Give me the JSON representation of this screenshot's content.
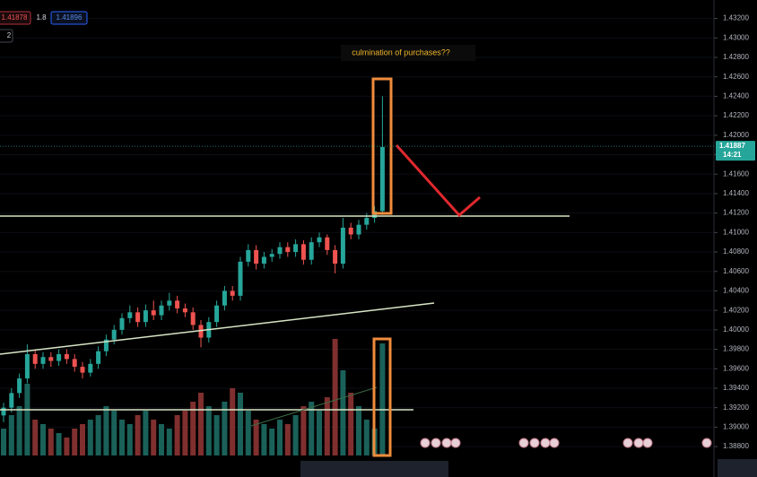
{
  "toolbar": {
    "sell": "1.41878",
    "spread": "1.8",
    "buy": "1.41896",
    "count": "2"
  },
  "chart_data": {
    "type": "candlestick",
    "annotation": "culmination of purchases??",
    "last_price": 1.41887,
    "countdown": "14:21",
    "up_color": "#26a69a",
    "down_color": "#ef5350",
    "ylim": [
      1.3869,
      1.4339
    ],
    "yticks": [
      {
        "value": 1.388,
        "label": "1.38800"
      },
      {
        "value": 1.39,
        "label": "1.39000"
      },
      {
        "value": 1.392,
        "label": "1.39200"
      },
      {
        "value": 1.394,
        "label": "1.39400"
      },
      {
        "value": 1.396,
        "label": "1.39600"
      },
      {
        "value": 1.398,
        "label": "1.39800"
      },
      {
        "value": 1.4,
        "label": "1.40000"
      },
      {
        "value": 1.402,
        "label": "1.40200"
      },
      {
        "value": 1.404,
        "label": "1.40400"
      },
      {
        "value": 1.406,
        "label": "1.40600"
      },
      {
        "value": 1.408,
        "label": "1.40800"
      },
      {
        "value": 1.41,
        "label": "1.41000"
      },
      {
        "value": 1.412,
        "label": "1.41200"
      },
      {
        "value": 1.414,
        "label": "1.41400"
      },
      {
        "value": 1.416,
        "label": "1.41600"
      },
      {
        "value": 1.418,
        "label": "1.41800"
      },
      {
        "value": 1.42,
        "label": "1.42000"
      },
      {
        "value": 1.422,
        "label": "1.42200"
      },
      {
        "value": 1.424,
        "label": "1.42400"
      },
      {
        "value": 1.426,
        "label": "1.42600"
      },
      {
        "value": 1.428,
        "label": "1.42800"
      },
      {
        "value": 1.43,
        "label": "1.43000"
      },
      {
        "value": 1.432,
        "label": "1.43200"
      }
    ],
    "open": [
      1.3912,
      1.392,
      1.3935,
      1.395,
      1.3975,
      1.3965,
      1.3972,
      1.3968,
      1.3975,
      1.397,
      1.3962,
      1.3956,
      1.3965,
      1.3978,
      1.399,
      1.4,
      1.4012,
      1.4018,
      1.4008,
      1.402,
      1.4015,
      1.4025,
      1.403,
      1.4022,
      1.4018,
      1.4005,
      1.3992,
      1.4008,
      1.4025,
      1.404,
      1.4035,
      1.407,
      1.4082,
      1.4068,
      1.4075,
      1.4078,
      1.4085,
      1.408,
      1.4088,
      1.4072,
      1.409,
      1.4095,
      1.4082,
      1.4068,
      1.4105,
      1.4098,
      1.4108,
      1.4115,
      1.4122
    ],
    "high": [
      1.3925,
      1.394,
      1.3955,
      1.3985,
      1.398,
      1.3977,
      1.3977,
      1.398,
      1.398,
      1.3975,
      1.3967,
      1.397,
      1.3983,
      1.3995,
      1.4005,
      1.4017,
      1.4025,
      1.4023,
      1.4026,
      1.403,
      1.403,
      1.4038,
      1.4035,
      1.4027,
      1.4023,
      1.401,
      1.4013,
      1.403,
      1.4045,
      1.4045,
      1.4075,
      1.4088,
      1.4087,
      1.408,
      1.4083,
      1.409,
      1.409,
      1.4093,
      1.4092,
      1.4095,
      1.41,
      1.4098,
      1.4087,
      1.4115,
      1.411,
      1.4113,
      1.412,
      1.4127,
      1.424
    ],
    "low": [
      1.3905,
      1.3915,
      1.393,
      1.3945,
      1.396,
      1.396,
      1.3962,
      1.3963,
      1.3965,
      1.3957,
      1.395,
      1.3952,
      1.396,
      1.3973,
      1.3985,
      1.3995,
      1.4007,
      1.4003,
      1.4003,
      1.401,
      1.401,
      1.402,
      1.4017,
      1.4013,
      1.4,
      1.3982,
      1.3987,
      1.4003,
      1.402,
      1.403,
      1.403,
      1.4065,
      1.4062,
      1.4063,
      1.407,
      1.4073,
      1.4075,
      1.4075,
      1.4067,
      1.4067,
      1.4085,
      1.4077,
      1.4058,
      1.4063,
      1.4093,
      1.4093,
      1.4103,
      1.411,
      1.4118
    ],
    "close": [
      1.392,
      1.3935,
      1.395,
      1.3975,
      1.3965,
      1.3972,
      1.3968,
      1.3975,
      1.397,
      1.3962,
      1.3956,
      1.3965,
      1.3978,
      1.399,
      1.4,
      1.4012,
      1.4018,
      1.4008,
      1.402,
      1.4015,
      1.4025,
      1.403,
      1.4022,
      1.4018,
      1.4005,
      1.3992,
      1.4008,
      1.4025,
      1.404,
      1.4035,
      1.407,
      1.4082,
      1.4068,
      1.4075,
      1.4078,
      1.4085,
      1.408,
      1.4088,
      1.4072,
      1.409,
      1.4095,
      1.4082,
      1.4068,
      1.4105,
      1.4098,
      1.4108,
      1.4115,
      1.4122,
      1.4188
    ],
    "volume": [
      30,
      45,
      55,
      80,
      40,
      35,
      30,
      25,
      20,
      30,
      35,
      40,
      45,
      55,
      50,
      40,
      35,
      45,
      50,
      40,
      35,
      30,
      45,
      50,
      60,
      70,
      55,
      45,
      60,
      75,
      70,
      50,
      40,
      35,
      30,
      40,
      35,
      45,
      55,
      60,
      50,
      65,
      130,
      95,
      70,
      55,
      40,
      30,
      125
    ]
  }
}
